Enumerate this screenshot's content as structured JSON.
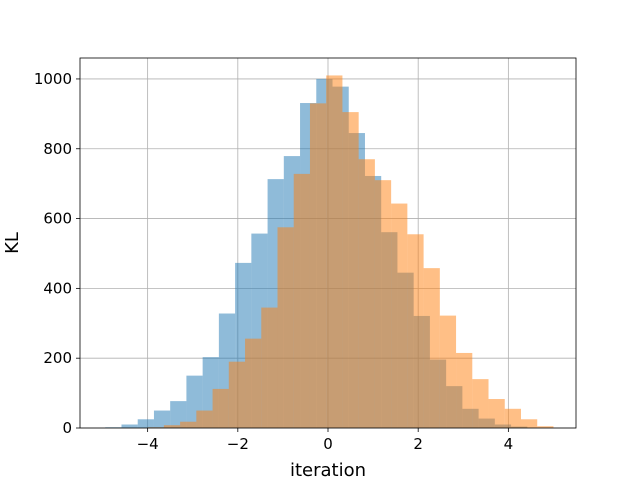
{
  "chart_data": {
    "type": "bar",
    "subtype": "overlaid-histogram",
    "title": "",
    "xlabel": "iteration",
    "ylabel": "KL",
    "xlim": [
      -5.5,
      5.5
    ],
    "ylim": [
      0,
      1060
    ],
    "grid": true,
    "xticks": [
      -4,
      -2,
      0,
      2,
      4
    ],
    "xtick_labels": [
      "−4",
      "−2",
      "0",
      "2",
      "4"
    ],
    "yticks": [
      0,
      200,
      400,
      600,
      800,
      1000
    ],
    "ytick_labels": [
      "0",
      "200",
      "400",
      "600",
      "800",
      "1000"
    ],
    "bar_opacity": 0.5,
    "series": [
      {
        "color": "#1f77b4",
        "bin_width": 0.36,
        "bins": [
          {
            "x0": -4.94,
            "value": 2
          },
          {
            "x0": -4.58,
            "value": 10
          },
          {
            "x0": -4.22,
            "value": 25
          },
          {
            "x0": -3.86,
            "value": 50
          },
          {
            "x0": -3.5,
            "value": 77
          },
          {
            "x0": -3.14,
            "value": 150
          },
          {
            "x0": -2.78,
            "value": 203
          },
          {
            "x0": -2.42,
            "value": 328
          },
          {
            "x0": -2.06,
            "value": 473
          },
          {
            "x0": -1.7,
            "value": 557
          },
          {
            "x0": -1.34,
            "value": 713
          },
          {
            "x0": -0.98,
            "value": 779
          },
          {
            "x0": -0.62,
            "value": 931
          },
          {
            "x0": -0.26,
            "value": 1000
          },
          {
            "x0": 0.1,
            "value": 978
          },
          {
            "x0": 0.46,
            "value": 845
          },
          {
            "x0": 0.82,
            "value": 722
          },
          {
            "x0": 1.18,
            "value": 561
          },
          {
            "x0": 1.54,
            "value": 445
          },
          {
            "x0": 1.9,
            "value": 321
          },
          {
            "x0": 2.26,
            "value": 196
          },
          {
            "x0": 2.62,
            "value": 120
          },
          {
            "x0": 2.98,
            "value": 55
          },
          {
            "x0": 3.34,
            "value": 27
          },
          {
            "x0": 3.7,
            "value": 10
          },
          {
            "x0": 4.06,
            "value": 4
          }
        ]
      },
      {
        "color": "#ff7f0e",
        "bin_width": 0.36,
        "bins": [
          {
            "x0": -4.0,
            "value": 2
          },
          {
            "x0": -3.64,
            "value": 8
          },
          {
            "x0": -3.28,
            "value": 18
          },
          {
            "x0": -2.92,
            "value": 50
          },
          {
            "x0": -2.56,
            "value": 112
          },
          {
            "x0": -2.2,
            "value": 190
          },
          {
            "x0": -1.84,
            "value": 256
          },
          {
            "x0": -1.48,
            "value": 345
          },
          {
            "x0": -1.12,
            "value": 575
          },
          {
            "x0": -0.76,
            "value": 728
          },
          {
            "x0": -0.4,
            "value": 930
          },
          {
            "x0": -0.04,
            "value": 1010
          },
          {
            "x0": 0.32,
            "value": 905
          },
          {
            "x0": 0.68,
            "value": 770
          },
          {
            "x0": 1.04,
            "value": 710
          },
          {
            "x0": 1.4,
            "value": 643
          },
          {
            "x0": 1.76,
            "value": 555
          },
          {
            "x0": 2.12,
            "value": 458
          },
          {
            "x0": 2.48,
            "value": 322
          },
          {
            "x0": 2.84,
            "value": 215
          },
          {
            "x0": 3.2,
            "value": 140
          },
          {
            "x0": 3.56,
            "value": 83
          },
          {
            "x0": 3.92,
            "value": 55
          },
          {
            "x0": 4.28,
            "value": 25
          },
          {
            "x0": 4.64,
            "value": 5
          }
        ]
      }
    ]
  }
}
